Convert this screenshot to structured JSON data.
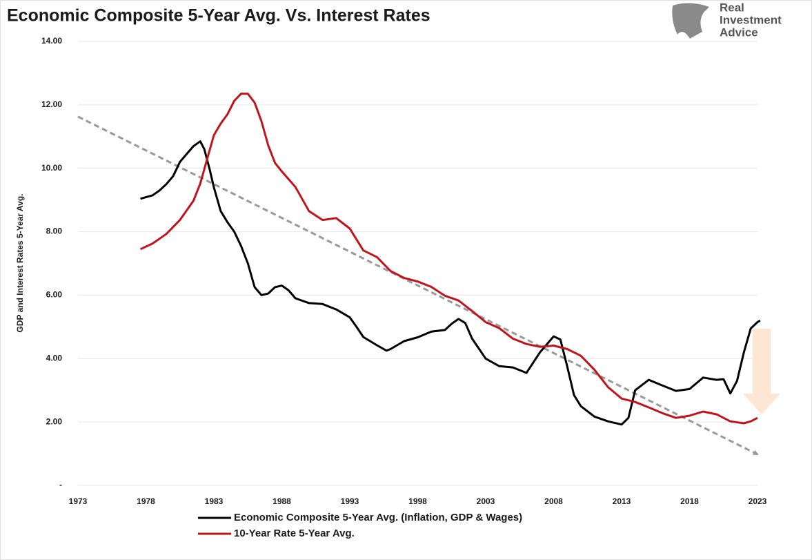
{
  "chart_data": {
    "type": "line",
    "title": "Economic Composite 5-Year Avg. Vs. Interest Rates",
    "logo_text": [
      "Real",
      "Investment",
      "Advice"
    ],
    "ylabel": "GDP and Interest Rates 5-Year Avg.",
    "xlim": [
      1973,
      2023
    ],
    "xticks": [
      1973,
      1978,
      1983,
      1988,
      1993,
      1998,
      2003,
      2008,
      2013,
      2018,
      2023
    ],
    "ylim": [
      0,
      14
    ],
    "yticks": [
      {
        "value": 0,
        "label": "-"
      },
      {
        "value": 2,
        "label": "2.00"
      },
      {
        "value": 4,
        "label": "4.00"
      },
      {
        "value": 6,
        "label": "6.00"
      },
      {
        "value": 8,
        "label": "8.00"
      },
      {
        "value": 10,
        "label": "10.00"
      },
      {
        "value": 12,
        "label": "12.00"
      },
      {
        "value": 14,
        "label": "14.00"
      }
    ],
    "grid": true,
    "legend": "bottom",
    "series": [
      {
        "name": "Economic Composite 5-Year Avg. (Inflation, GDP & Wages)",
        "color": "#000000",
        "x": [
          1977.6,
          1978.5,
          1979,
          1979.5,
          1980,
          1980.5,
          1981,
          1981.5,
          1982,
          1982.3,
          1982.7,
          1983,
          1983.5,
          1984,
          1984.5,
          1985,
          1985.5,
          1986,
          1986.5,
          1987,
          1987.5,
          1988,
          1988.5,
          1989,
          1990,
          1991,
          1992,
          1993,
          1993.5,
          1994,
          1995,
          1995.7,
          1996,
          1997,
          1998,
          1999,
          2000,
          2000.5,
          2001,
          2001.5,
          2002,
          2003,
          2004,
          2005,
          2006,
          2007,
          2008,
          2008.5,
          2009,
          2009.5,
          2010,
          2011,
          2012,
          2013,
          2013.5,
          2014,
          2015,
          2016,
          2017,
          2018,
          2019,
          2020,
          2020.5,
          2021,
          2021.5,
          2022,
          2022.5,
          2023,
          2023.2
        ],
        "values": [
          9.04,
          9.15,
          9.3,
          9.5,
          9.75,
          10.2,
          10.45,
          10.7,
          10.85,
          10.6,
          9.95,
          9.4,
          8.65,
          8.3,
          8.0,
          7.55,
          7.0,
          6.25,
          6.0,
          6.05,
          6.25,
          6.3,
          6.15,
          5.9,
          5.75,
          5.72,
          5.55,
          5.3,
          5.0,
          4.68,
          4.42,
          4.25,
          4.3,
          4.55,
          4.67,
          4.85,
          4.9,
          5.1,
          5.25,
          5.12,
          4.63,
          4.0,
          3.76,
          3.72,
          3.55,
          4.2,
          4.7,
          4.6,
          3.75,
          2.85,
          2.5,
          2.17,
          2.02,
          1.92,
          2.13,
          3.0,
          3.33,
          3.15,
          2.98,
          3.04,
          3.4,
          3.33,
          3.35,
          2.9,
          3.3,
          4.2,
          4.95,
          5.15,
          5.2
        ]
      },
      {
        "name": "10-Year Rate 5-Year Avg.",
        "color": "#c0141c",
        "x": [
          1977.6,
          1978.5,
          1979.5,
          1980.5,
          1981.5,
          1982,
          1982.5,
          1983,
          1983.5,
          1984,
          1984.5,
          1985,
          1985.5,
          1986,
          1986.5,
          1987,
          1987.5,
          1988,
          1989,
          1990,
          1991,
          1992,
          1993,
          1994,
          1995,
          1996,
          1997,
          1998,
          1999,
          2000,
          2001,
          2002,
          2003,
          2004,
          2005,
          2006,
          2007,
          2008,
          2009,
          2010,
          2011,
          2012,
          2013,
          2014,
          2015,
          2016,
          2017,
          2018,
          2019,
          2020,
          2021,
          2022,
          2022.5,
          2023
        ],
        "values": [
          7.45,
          7.63,
          7.93,
          8.37,
          8.98,
          9.52,
          10.28,
          11.04,
          11.41,
          11.7,
          12.13,
          12.35,
          12.35,
          12.07,
          11.48,
          10.72,
          10.17,
          9.9,
          9.41,
          8.65,
          8.37,
          8.43,
          8.1,
          7.41,
          7.2,
          6.76,
          6.54,
          6.43,
          6.26,
          5.98,
          5.83,
          5.5,
          5.15,
          4.96,
          4.63,
          4.46,
          4.37,
          4.41,
          4.3,
          4.09,
          3.65,
          3.1,
          2.74,
          2.63,
          2.46,
          2.28,
          2.13,
          2.2,
          2.33,
          2.24,
          2.02,
          1.96,
          2.02,
          2.13
        ]
      }
    ],
    "trend": {
      "x": [
        1973,
        2023
      ],
      "values": [
        11.63,
        0.98
      ],
      "color": "#999999",
      "dash": true
    }
  }
}
